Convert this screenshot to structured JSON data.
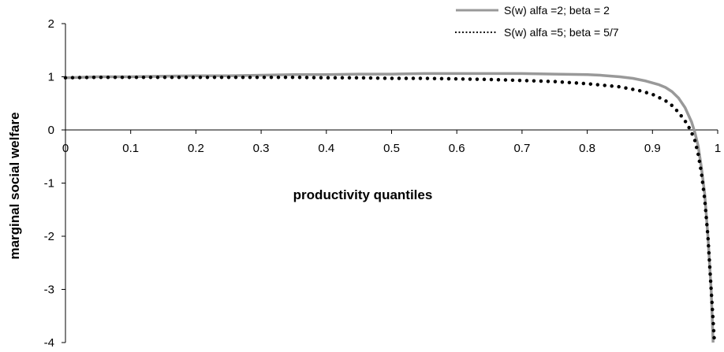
{
  "chart_data": {
    "type": "line",
    "title": "",
    "xlabel": "productivity quantiles",
    "ylabel": "marginal social welfare",
    "xlim": [
      0,
      1
    ],
    "ylim": [
      -4,
      2
    ],
    "x_ticks": [
      0,
      0.1,
      0.2,
      0.3,
      0.4,
      0.5,
      0.6,
      0.7,
      0.8,
      0.9,
      1
    ],
    "x_tick_labels": [
      "0",
      "0.1",
      "0.2",
      "0.3",
      "0.4",
      "0.5",
      "0.6",
      "0.7",
      "0.8",
      "0.9",
      "1"
    ],
    "y_ticks": [
      2,
      1,
      0,
      -1,
      -2,
      -3,
      -4
    ],
    "y_tick_labels": [
      "2",
      "1",
      "0",
      "-1",
      "-2",
      "-3",
      "-4"
    ],
    "grid": false,
    "legend_position": "top-right",
    "series": [
      {
        "name": "S(w) alfa =2; beta = 2",
        "style": "solid",
        "color": "#999999",
        "points": [
          [
            0,
            0.98
          ],
          [
            0.05,
            1.0
          ],
          [
            0.1,
            1.0
          ],
          [
            0.15,
            1.01
          ],
          [
            0.2,
            1.02
          ],
          [
            0.25,
            1.02
          ],
          [
            0.3,
            1.03
          ],
          [
            0.35,
            1.04
          ],
          [
            0.4,
            1.04
          ],
          [
            0.45,
            1.05
          ],
          [
            0.5,
            1.05
          ],
          [
            0.55,
            1.06
          ],
          [
            0.6,
            1.06
          ],
          [
            0.65,
            1.06
          ],
          [
            0.7,
            1.06
          ],
          [
            0.75,
            1.05
          ],
          [
            0.8,
            1.04
          ],
          [
            0.82,
            1.03
          ],
          [
            0.85,
            1.0
          ],
          [
            0.87,
            0.97
          ],
          [
            0.89,
            0.92
          ],
          [
            0.91,
            0.85
          ],
          [
            0.92,
            0.8
          ],
          [
            0.93,
            0.72
          ],
          [
            0.94,
            0.6
          ],
          [
            0.95,
            0.42
          ],
          [
            0.96,
            0.15
          ],
          [
            0.965,
            -0.05
          ],
          [
            0.97,
            -0.3
          ],
          [
            0.975,
            -0.7
          ],
          [
            0.98,
            -1.2
          ],
          [
            0.985,
            -2.0
          ],
          [
            0.99,
            -3.0
          ],
          [
            0.993,
            -4.0
          ]
        ]
      },
      {
        "name": "S(w) alfa =5; beta = 5/7",
        "style": "dotted",
        "color": "#000000",
        "points": [
          [
            0,
            0.98
          ],
          [
            0.05,
            0.99
          ],
          [
            0.1,
            0.99
          ],
          [
            0.15,
            0.99
          ],
          [
            0.2,
            0.99
          ],
          [
            0.25,
            0.99
          ],
          [
            0.3,
            0.99
          ],
          [
            0.35,
            0.99
          ],
          [
            0.4,
            0.98
          ],
          [
            0.45,
            0.98
          ],
          [
            0.5,
            0.97
          ],
          [
            0.55,
            0.97
          ],
          [
            0.6,
            0.96
          ],
          [
            0.65,
            0.95
          ],
          [
            0.7,
            0.93
          ],
          [
            0.75,
            0.91
          ],
          [
            0.8,
            0.87
          ],
          [
            0.85,
            0.81
          ],
          [
            0.88,
            0.74
          ],
          [
            0.9,
            0.67
          ],
          [
            0.92,
            0.55
          ],
          [
            0.93,
            0.46
          ],
          [
            0.94,
            0.33
          ],
          [
            0.95,
            0.17
          ],
          [
            0.955,
            0.07
          ],
          [
            0.96,
            -0.05
          ],
          [
            0.965,
            -0.2
          ],
          [
            0.97,
            -0.45
          ],
          [
            0.975,
            -0.8
          ],
          [
            0.98,
            -1.3
          ],
          [
            0.985,
            -2.0
          ],
          [
            0.99,
            -3.0
          ],
          [
            0.995,
            -4.0
          ]
        ]
      }
    ]
  }
}
